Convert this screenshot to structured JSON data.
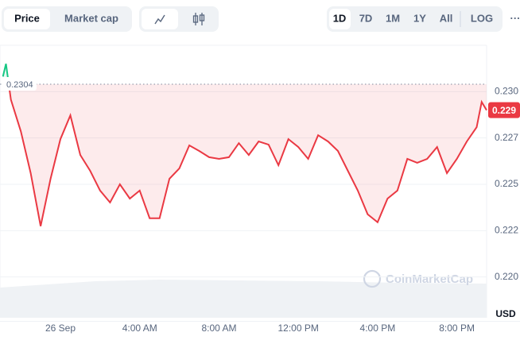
{
  "toolbar": {
    "tabs": [
      "Price",
      "Market cap"
    ],
    "ranges": [
      "1D",
      "7D",
      "1M",
      "1Y",
      "All"
    ],
    "log": "LOG",
    "more": "···"
  },
  "chart_data": {
    "type": "line",
    "x": [
      -2.9,
      -2.75,
      -2.5,
      -2,
      -1.5,
      -1,
      -0.5,
      0,
      0.5,
      1,
      1.5,
      2,
      2.5,
      3,
      3.5,
      4,
      4.5,
      5,
      5.5,
      6,
      6.5,
      7,
      7.5,
      8,
      8.5,
      9,
      9.5,
      10,
      10.5,
      11,
      11.5,
      12,
      12.5,
      13,
      13.5,
      14,
      14.5,
      15,
      15.5,
      16,
      16.5,
      17,
      17.5,
      18,
      18.5,
      19,
      19.5,
      20,
      20.5,
      21,
      21.25,
      21.5
    ],
    "values": [
      0.23081,
      0.2315,
      0.22957,
      0.22786,
      0.2256,
      0.22274,
      0.2253,
      0.22744,
      0.22872,
      0.22658,
      0.22573,
      0.22466,
      0.22402,
      0.225,
      0.22423,
      0.22466,
      0.22317,
      0.22317,
      0.2253,
      0.22586,
      0.2271,
      0.2268,
      0.22646,
      0.22637,
      0.22646,
      0.22722,
      0.22658,
      0.22731,
      0.22714,
      0.22603,
      0.22744,
      0.22701,
      0.22637,
      0.22765,
      0.22731,
      0.2268,
      0.22573,
      0.22466,
      0.22338,
      0.22295,
      0.22423,
      0.22466,
      0.22637,
      0.22616,
      0.22637,
      0.22701,
      0.2256,
      0.22637,
      0.22731,
      0.22808,
      0.22944,
      0.229
    ],
    "color": "#ea3943",
    "up_color": "#16c784",
    "baseline": 0.2304,
    "current_price": {
      "value": 0.229,
      "label": "0.229"
    },
    "xlim": [
      -3.05,
      21.5
    ],
    "ylim": [
      0.2178,
      0.2325
    ],
    "xticks": [
      {
        "value": 0,
        "label": "26 Sep"
      },
      {
        "value": 4,
        "label": "4:00 AM"
      },
      {
        "value": 8,
        "label": "8:00 AM"
      },
      {
        "value": 12,
        "label": "12:00 PM"
      },
      {
        "value": 16,
        "label": "4:00 PM"
      },
      {
        "value": 20,
        "label": "8:00 PM"
      }
    ],
    "yticks": [
      {
        "value": 0.23,
        "label": "0.230"
      },
      {
        "value": 0.2275,
        "label": "0.227"
      },
      {
        "value": 0.225,
        "label": "0.225"
      },
      {
        "value": 0.2225,
        "label": "0.222"
      },
      {
        "value": 0.22,
        "label": "0.220"
      }
    ],
    "grid": true,
    "currency": "USD",
    "watermark": "CoinMarketCap"
  }
}
